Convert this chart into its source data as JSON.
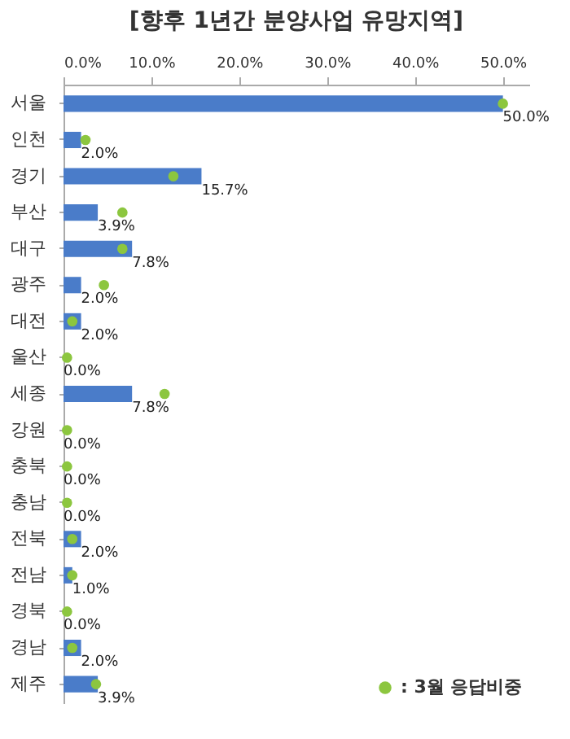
{
  "chart_data": {
    "type": "bar",
    "orientation": "horizontal",
    "title": "[향후 1년간 분양사업 유망지역]",
    "categories": [
      "서울",
      "인천",
      "경기",
      "부산",
      "대구",
      "광주",
      "대전",
      "울산",
      "세종",
      "강원",
      "충북",
      "충남",
      "전북",
      "전남",
      "경북",
      "경남",
      "제주"
    ],
    "series": [
      {
        "color": "#4a7cc9",
        "values": [
          50.0,
          2.0,
          15.7,
          3.9,
          7.8,
          2.0,
          2.0,
          0.0,
          7.8,
          0.0,
          0.0,
          0.0,
          2.0,
          1.0,
          0.0,
          2.0,
          3.9
        ],
        "value_labels": [
          "50.0%",
          "2.0%",
          "15.7%",
          "3.9%",
          "7.8%",
          "2.0%",
          "2.0%",
          "0.0%",
          "7.8%",
          "0.0%",
          "0.0%",
          "0.0%",
          "2.0%",
          "1.0%",
          "0.0%",
          "2.0%",
          "3.9%"
        ]
      },
      {
        "type": "scatter",
        "name": ": 3월 응답비중",
        "color": "#8cc63f",
        "values": [
          50.0,
          2.5,
          12.5,
          6.7,
          6.7,
          4.6,
          1.0,
          0.4,
          11.5,
          0.4,
          0.4,
          0.4,
          1.0,
          1.0,
          0.4,
          1.0,
          3.7
        ]
      }
    ],
    "xlim": [
      0,
      53
    ],
    "xticks": [
      {
        "value": 0,
        "label": "0.0%"
      },
      {
        "value": 10,
        "label": "10.0%"
      },
      {
        "value": 20,
        "label": "20.0%"
      },
      {
        "value": 30,
        "label": "30.0%"
      },
      {
        "value": 40,
        "label": "40.0%"
      },
      {
        "value": 50,
        "label": "50.0%"
      }
    ],
    "legend": "bottom right",
    "marker": "circle",
    "grid": false
  }
}
